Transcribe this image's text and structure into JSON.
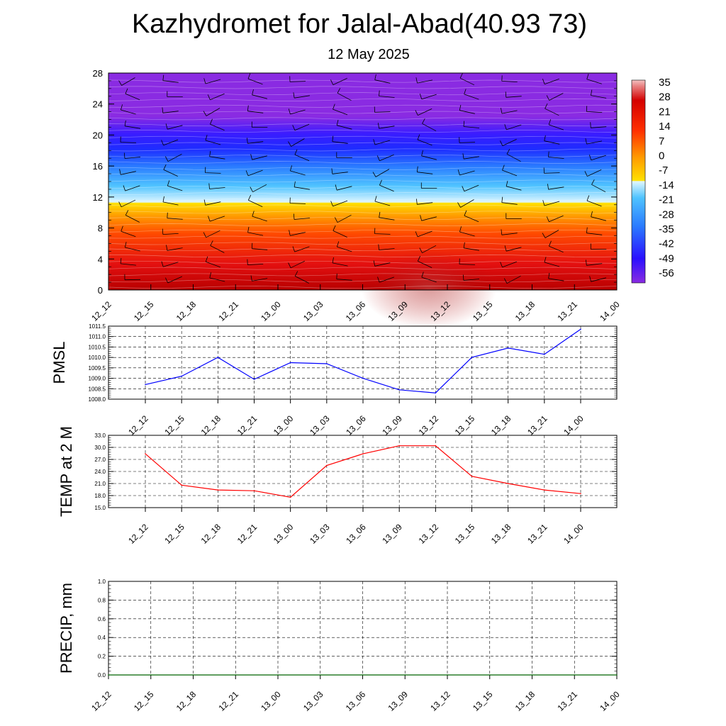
{
  "header": {
    "title": "Kazhydromet for Jalal-Abad(40.93 73)",
    "date": "12 May 2025"
  },
  "colors": {
    "pmsl_line": "#0000ff",
    "temp_line": "#ff0000",
    "precip_line": "#006400",
    "purple_top": "#8a2be2",
    "blue": "#1e3cff",
    "light_blue": "#4fc3ff",
    "yellow": "#ffe000",
    "orange": "#ff8c00",
    "red": "#e00000",
    "dark_red": "#b00000"
  },
  "chart_data": [
    {
      "name": "temperature-cross-section",
      "type": "heatmap",
      "x_tick_labels": [
        "12_12",
        "12_15",
        "12_18",
        "12_21",
        "13_00",
        "13_03",
        "13_06",
        "13_09",
        "13_12",
        "13_15",
        "13_18",
        "13_21",
        "14_00"
      ],
      "y_tick_labels": [
        "0",
        "4",
        "8",
        "12",
        "16",
        "20",
        "24",
        "28"
      ],
      "ylim": [
        0,
        28
      ],
      "colorbar_labels": [
        "35",
        "28",
        "21",
        "14",
        "7",
        "0",
        "-7",
        "-14",
        "-21",
        "-28",
        "-35",
        "-42",
        "-49",
        "-56"
      ],
      "colorbar_range": [
        -56,
        35
      ],
      "overlay": "wind barbs"
    },
    {
      "name": "pmsl",
      "type": "line",
      "ylabel": "PMSL",
      "x": [
        "12_12",
        "12_15",
        "12_18",
        "12_21",
        "13_00",
        "13_03",
        "13_06",
        "13_09",
        "13_12",
        "13_15",
        "13_18",
        "13_21",
        "14_00"
      ],
      "values": [
        1008.7,
        1009.1,
        1010.0,
        1008.95,
        1009.75,
        1009.7,
        1009.0,
        1008.45,
        1008.3,
        1010.0,
        1010.45,
        1010.15,
        1011.35
      ],
      "ylim": [
        1008.0,
        1011.5
      ],
      "y_tick_labels": [
        "1008.0",
        "1008.5",
        "1009.0",
        "1009.5",
        "1010.0",
        "1010.5",
        "1011.0",
        "1011.5"
      ],
      "grid": true
    },
    {
      "name": "temp-2m",
      "type": "line",
      "ylabel": "TEMP at 2 M",
      "x": [
        "12_12",
        "12_15",
        "12_18",
        "12_21",
        "13_00",
        "13_03",
        "13_06",
        "13_09",
        "13_12",
        "13_15",
        "13_18",
        "13_21",
        "14_00"
      ],
      "values": [
        28.4,
        20.6,
        19.4,
        19.2,
        17.6,
        25.5,
        28.4,
        30.4,
        30.4,
        22.8,
        21.0,
        19.4,
        18.5
      ],
      "ylim": [
        15.0,
        33.0
      ],
      "y_tick_labels": [
        "15.0",
        "18.0",
        "21.0",
        "24.0",
        "27.0",
        "30.0",
        "33.0"
      ],
      "grid": true
    },
    {
      "name": "precip",
      "type": "line",
      "ylabel": "PRECIP, mm",
      "x": [
        "12_12",
        "12_15",
        "12_18",
        "12_21",
        "13_00",
        "13_03",
        "13_06",
        "13_09",
        "13_12",
        "13_15",
        "13_18",
        "13_21",
        "14_00"
      ],
      "values": [
        0,
        0,
        0,
        0,
        0,
        0,
        0,
        0,
        0,
        0,
        0,
        0,
        0
      ],
      "ylim": [
        0.0,
        1.0
      ],
      "y_tick_labels": [
        "0.0",
        "0.2",
        "0.4",
        "0.6",
        "0.8",
        "1.0"
      ],
      "grid": true
    }
  ]
}
